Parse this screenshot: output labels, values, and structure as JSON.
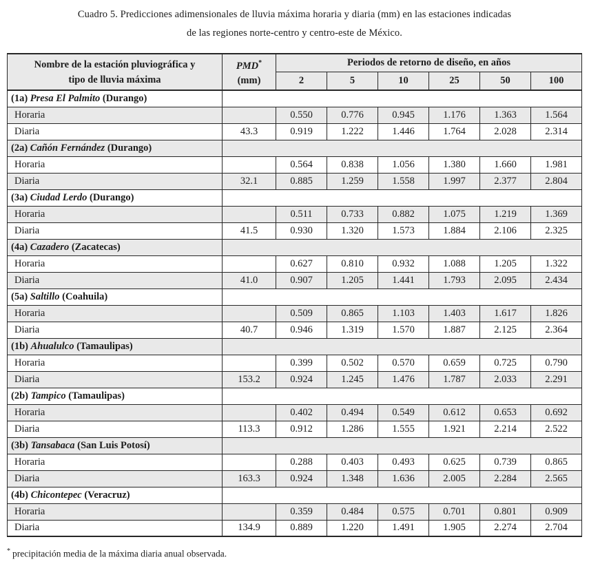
{
  "caption": {
    "line1": "Cuadro 5. Predicciones adimensionales de lluvia máxima horaria y diaria (mm) en las estaciones indicadas",
    "line2": "de las regiones norte-centro y centro-este de México."
  },
  "table": {
    "col1_header_line1": "Nombre de la estación pluviográfica y",
    "col1_header_line2": "tipo de lluvia máxima",
    "pmd_label": "PMD",
    "pmd_sup": "*",
    "pmd_unit": "(mm)",
    "periods_header": "Periodos de retorno de diseño, en años",
    "periods": [
      "2",
      "5",
      "10",
      "25",
      "50",
      "100"
    ],
    "row_labels": {
      "hourly": "Horaria",
      "daily": "Diaria"
    },
    "stations": [
      {
        "id": "(1a)",
        "name": "Presa El Palmito",
        "state": "(Durango)",
        "pmd": "43.3",
        "horaria": [
          "0.550",
          "0.776",
          "0.945",
          "1.176",
          "1.363",
          "1.564"
        ],
        "diaria": [
          "0.919",
          "1.222",
          "1.446",
          "1.764",
          "2.028",
          "2.314"
        ]
      },
      {
        "id": "(2a)",
        "name": "Cañón Fernández",
        "state": "(Durango)",
        "pmd": "32.1",
        "horaria": [
          "0.564",
          "0.838",
          "1.056",
          "1.380",
          "1.660",
          "1.981"
        ],
        "diaria": [
          "0.885",
          "1.259",
          "1.558",
          "1.997",
          "2.377",
          "2.804"
        ]
      },
      {
        "id": "(3a)",
        "name": "Ciudad Lerdo",
        "state": "(Durango)",
        "pmd": "41.5",
        "horaria": [
          "0.511",
          "0.733",
          "0.882",
          "1.075",
          "1.219",
          "1.369"
        ],
        "diaria": [
          "0.930",
          "1.320",
          "1.573",
          "1.884",
          "2.106",
          "2.325"
        ]
      },
      {
        "id": "(4a)",
        "name": "Cazadero",
        "state": "(Zacatecas)",
        "pmd": "41.0",
        "horaria": [
          "0.627",
          "0.810",
          "0.932",
          "1.088",
          "1.205",
          "1.322"
        ],
        "diaria": [
          "0.907",
          "1.205",
          "1.441",
          "1.793",
          "2.095",
          "2.434"
        ]
      },
      {
        "id": "(5a)",
        "name": "Saltillo",
        "state": "(Coahuila)",
        "pmd": "40.7",
        "horaria": [
          "0.509",
          "0.865",
          "1.103",
          "1.403",
          "1.617",
          "1.826"
        ],
        "diaria": [
          "0.946",
          "1.319",
          "1.570",
          "1.887",
          "2.125",
          "2.364"
        ]
      },
      {
        "id": "(1b)",
        "name": "Ahualulco",
        "state": "(Tamaulipas)",
        "pmd": "153.2",
        "horaria": [
          "0.399",
          "0.502",
          "0.570",
          "0.659",
          "0.725",
          "0.790"
        ],
        "diaria": [
          "0.924",
          "1.245",
          "1.476",
          "1.787",
          "2.033",
          "2.291"
        ]
      },
      {
        "id": "(2b)",
        "name": "Tampico",
        "state": "(Tamaulipas)",
        "pmd": "113.3",
        "horaria": [
          "0.402",
          "0.494",
          "0.549",
          "0.612",
          "0.653",
          "0.692"
        ],
        "diaria": [
          "0.912",
          "1.286",
          "1.555",
          "1.921",
          "2.214",
          "2.522"
        ]
      },
      {
        "id": "(3b)",
        "name": "Tansabaca",
        "state": "(San Luis Potosí)",
        "pmd": "163.3",
        "horaria": [
          "0.288",
          "0.403",
          "0.493",
          "0.625",
          "0.739",
          "0.865"
        ],
        "diaria": [
          "0.924",
          "1.348",
          "1.636",
          "2.005",
          "2.284",
          "2.565"
        ]
      },
      {
        "id": "(4b)",
        "name": "Chicontepec",
        "state": "(Veracruz)",
        "pmd": "134.9",
        "horaria": [
          "0.359",
          "0.484",
          "0.575",
          "0.701",
          "0.801",
          "0.909"
        ],
        "diaria": [
          "0.889",
          "1.220",
          "1.491",
          "1.905",
          "2.274",
          "2.704"
        ]
      }
    ]
  },
  "footnote": {
    "marker": "*",
    "text": "precipitación media de la máxima diaria anual observada."
  },
  "colors": {
    "header_bg": "#e9e9e9",
    "stripe_bg": "#e9e9e9",
    "border": "#262626",
    "text": "#1c1c1c"
  }
}
